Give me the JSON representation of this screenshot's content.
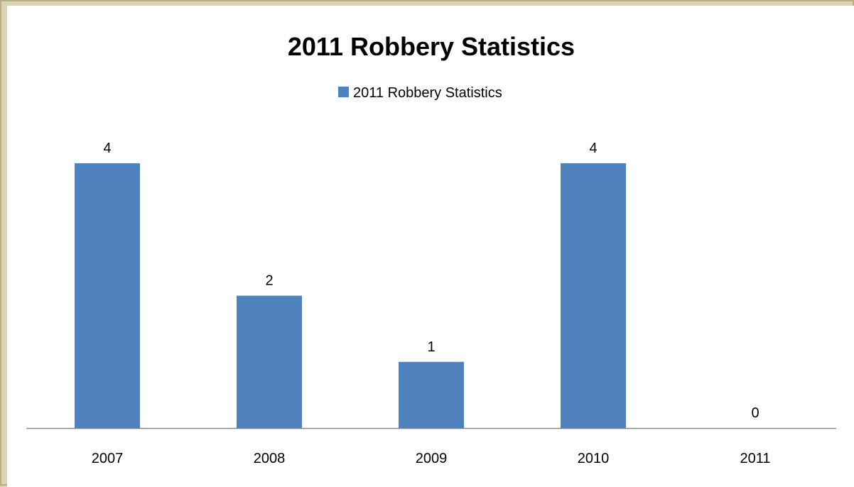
{
  "chart_data": {
    "type": "bar",
    "title": "2011 Robbery Statistics",
    "categories": [
      "2007",
      "2008",
      "2009",
      "2010",
      "2011"
    ],
    "series": [
      {
        "name": "2011 Robbery Statistics",
        "values": [
          4,
          2,
          1,
          4,
          0
        ]
      }
    ],
    "data_labels": [
      "4",
      "2",
      "1",
      "4",
      "0"
    ],
    "ylim": [
      0,
      4
    ],
    "grid": false,
    "legend_position": "top",
    "bar_color": "#4f81bd",
    "axis_color": "#878787"
  }
}
